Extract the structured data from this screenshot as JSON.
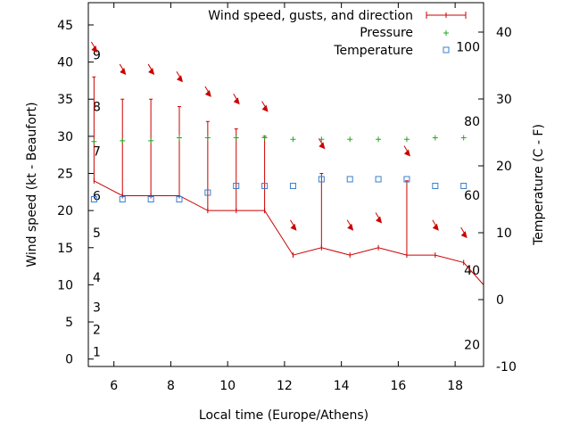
{
  "chart_data": {
    "type": "line",
    "xlabel": "Local time (Europe/Athens)",
    "ylabel": "Wind speed (kt - Beaufort)",
    "y2label": "Temperature (C - F)",
    "xlim": [
      5.1,
      19.0
    ],
    "ylim": [
      -1,
      48
    ],
    "y2lim": [
      -10,
      44.4
    ],
    "x_ticks": [
      6,
      8,
      10,
      12,
      14,
      16,
      18
    ],
    "y_ticks": [
      0,
      5,
      10,
      15,
      20,
      25,
      30,
      35,
      40,
      45
    ],
    "y2_ticks": [
      -10,
      0,
      10,
      20,
      30,
      40
    ],
    "beaufort_labels": [
      {
        "label": "1",
        "kt": 1
      },
      {
        "label": "2",
        "kt": 4
      },
      {
        "label": "3",
        "kt": 7
      },
      {
        "label": "4",
        "kt": 11
      },
      {
        "label": "5",
        "kt": 17
      },
      {
        "label": "6",
        "kt": 22
      },
      {
        "label": "7",
        "kt": 28
      },
      {
        "label": "8",
        "kt": 34
      },
      {
        "label": "9",
        "kt": 41
      }
    ],
    "fahrenheit_labels": [
      {
        "label": "20",
        "c": -6.7
      },
      {
        "label": "40",
        "c": 4.4
      },
      {
        "label": "60",
        "c": 15.6
      },
      {
        "label": "80",
        "c": 26.7
      },
      {
        "label": "100",
        "c": 37.8
      }
    ],
    "legend": {
      "position": "top-right",
      "wind": "Wind speed, gusts, and direction",
      "pressure": "Pressure",
      "temperature": "Temperature"
    },
    "colors": {
      "wind": "#cc0000",
      "pressure": "#22aa22",
      "temperature": "#3a7fcf"
    },
    "wind": {
      "x": [
        5.3,
        6.3,
        7.3,
        8.3,
        9.3,
        10.3,
        11.3,
        12.3,
        13.3,
        14.3,
        15.3,
        16.3,
        17.3,
        18.3,
        19.0
      ],
      "speed": [
        24,
        22,
        22,
        22,
        20,
        20,
        20,
        14,
        15,
        14,
        15,
        14,
        14,
        13,
        10
      ],
      "gust": [
        38,
        35,
        35,
        34,
        32,
        31,
        30,
        null,
        25,
        null,
        null,
        24,
        null,
        null,
        null
      ]
    },
    "arrows": {
      "x": [
        5.3,
        6.3,
        7.3,
        8.3,
        9.3,
        10.3,
        11.3,
        12.3,
        13.3,
        14.3,
        15.3,
        16.3,
        17.3,
        18.3
      ],
      "y": [
        42,
        39,
        39,
        38,
        36,
        35,
        34,
        18,
        29,
        18,
        19,
        28,
        18,
        17
      ]
    },
    "pressure": {
      "x": [
        5.3,
        6.3,
        7.3,
        8.3,
        9.3,
        10.3,
        11.3,
        12.3,
        13.3,
        14.3,
        15.3,
        16.3,
        17.3,
        18.3
      ],
      "y": [
        29.3,
        29.4,
        29.4,
        29.8,
        29.8,
        29.8,
        29.8,
        29.6,
        29.6,
        29.6,
        29.6,
        29.6,
        29.8,
        29.8
      ]
    },
    "temperature": {
      "x": [
        5.3,
        6.3,
        7.3,
        8.3,
        9.3,
        10.3,
        11.3,
        12.3,
        13.3,
        14.3,
        15.3,
        16.3,
        17.3,
        18.3
      ],
      "c": [
        15,
        15,
        15,
        15,
        16,
        17,
        17,
        17,
        18,
        18,
        18,
        18,
        17,
        17
      ]
    }
  }
}
